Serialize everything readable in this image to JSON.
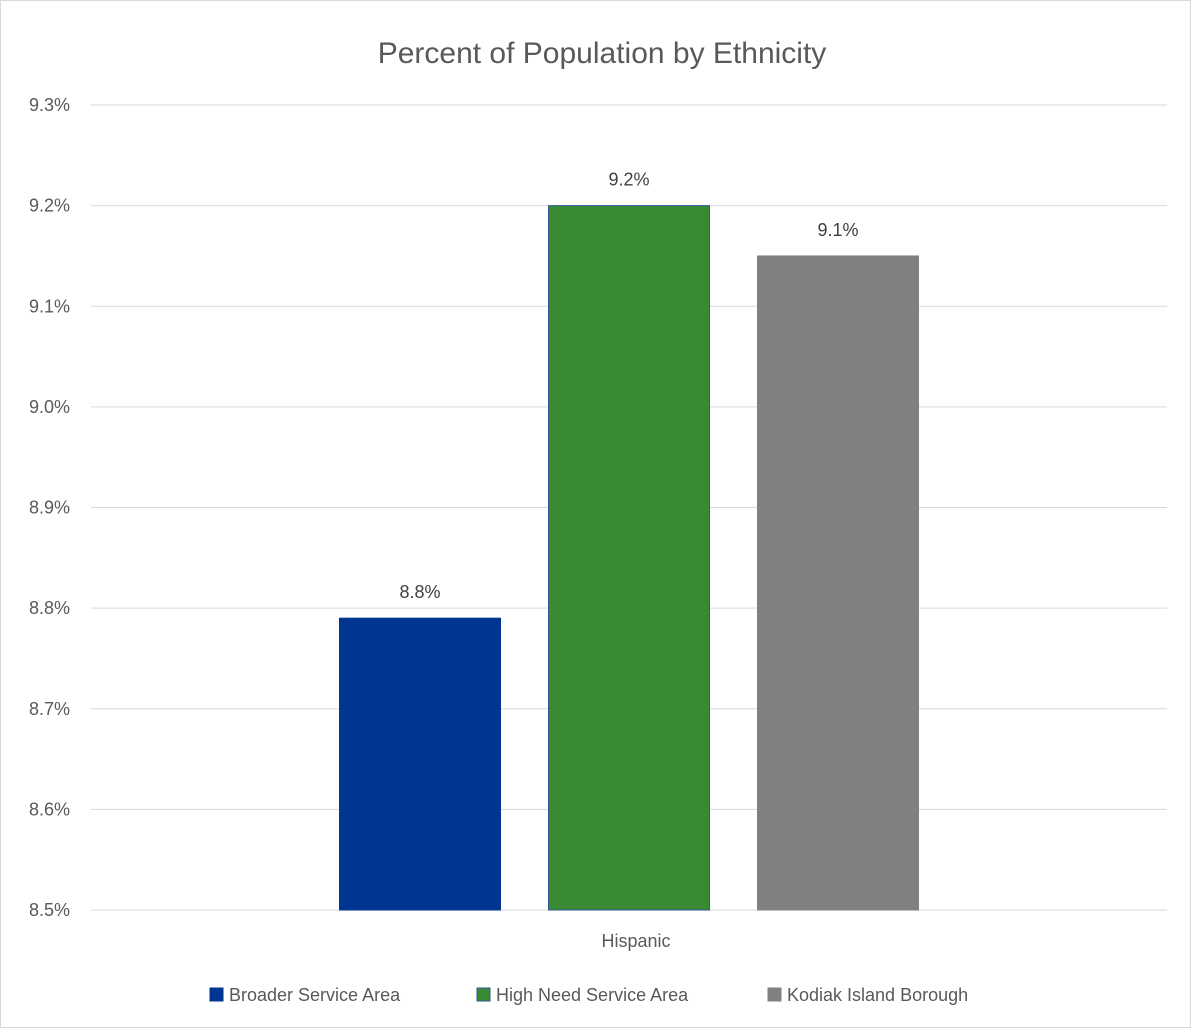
{
  "chart_data": {
    "type": "bar",
    "title": "Percent of Population by Ethnicity",
    "categories": [
      "Hispanic"
    ],
    "series": [
      {
        "name": "Broader Service Area",
        "values": [
          8.79
        ],
        "label": "8.8%",
        "color": "#003591",
        "border": "#003591"
      },
      {
        "name": "High Need Service Area",
        "values": [
          9.2
        ],
        "label": "9.2%",
        "color": "#388B32",
        "border": "#2F5597"
      },
      {
        "name": "Kodiak Island Borough",
        "values": [
          9.15
        ],
        "label": "9.1%",
        "color": "#808080",
        "border": "#808080"
      }
    ],
    "ylim": [
      8.5,
      9.3
    ],
    "yticks": [
      8.5,
      8.6,
      8.7,
      8.8,
      8.9,
      9.0,
      9.1,
      9.2,
      9.3
    ],
    "ytick_labels": [
      "8.5%",
      "8.6%",
      "8.7%",
      "8.8%",
      "8.9%",
      "9.0%",
      "9.1%",
      "9.2%",
      "9.3%"
    ],
    "xlabel": "",
    "ylabel": "",
    "grid": true,
    "legend_position": "bottom"
  }
}
